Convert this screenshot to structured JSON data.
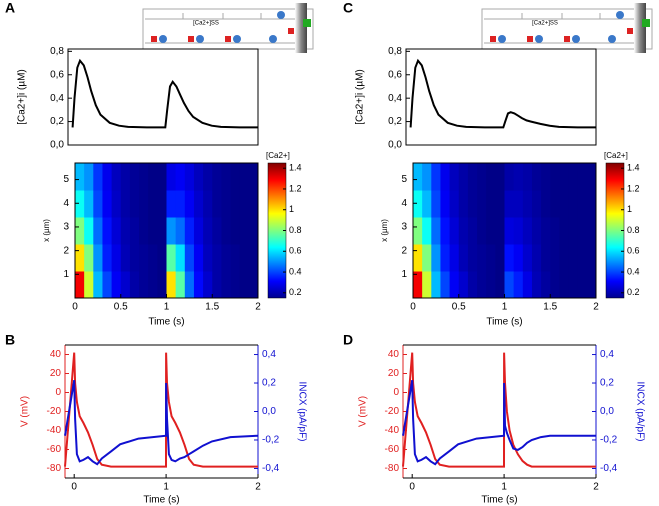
{
  "chart_data": [
    {
      "type": "line",
      "panel_label": "A",
      "annotation": "[Ca2+]SS",
      "ylabel": "[Ca2+]i (µM)",
      "x": [
        0,
        0.02,
        0.05,
        0.08,
        0.12,
        0.16,
        0.2,
        0.25,
        0.3,
        0.4,
        0.5,
        0.6,
        0.8,
        1.0,
        1.02,
        1.05,
        1.08,
        1.12,
        1.16,
        1.2,
        1.25,
        1.3,
        1.4,
        1.5,
        1.6,
        1.8,
        2.0
      ],
      "series": [
        {
          "color": "#000000",
          "values": [
            0.15,
            0.4,
            0.66,
            0.72,
            0.68,
            0.58,
            0.46,
            0.34,
            0.26,
            0.19,
            0.165,
            0.155,
            0.15,
            0.15,
            0.3,
            0.5,
            0.54,
            0.5,
            0.43,
            0.36,
            0.29,
            0.24,
            0.19,
            0.165,
            0.155,
            0.15,
            0.15
          ]
        }
      ],
      "xlim": [
        -0.05,
        2.0
      ],
      "ylim": [
        0,
        0.82
      ],
      "yticks": [
        {
          "value": 0,
          "label": "0,0"
        },
        {
          "value": 0.2,
          "label": "0,2"
        },
        {
          "value": 0.4,
          "label": "0,4"
        },
        {
          "value": 0.6,
          "label": "0,6"
        },
        {
          "value": 0.8,
          "label": "0,8"
        }
      ]
    },
    {
      "type": "heatmap",
      "xlabel": "Time (s)",
      "ylabel": "x (µm)",
      "colorbar_title": "[Ca2+]",
      "x": [
        0.05,
        0.15,
        0.25,
        0.35,
        0.45,
        0.55,
        0.65,
        0.75,
        0.85,
        0.95,
        1.05,
        1.15,
        1.25,
        1.35,
        1.45,
        1.55,
        1.65,
        1.75,
        1.85,
        1.95
      ],
      "y": [
        0.57,
        1.71,
        2.85,
        3.99,
        5.13
      ],
      "z": [
        [
          1.3,
          0.9,
          0.55,
          0.4,
          0.3,
          0.25,
          0.2,
          0.18,
          0.17,
          0.16,
          1.0,
          0.75,
          0.45,
          0.32,
          0.25,
          0.2,
          0.18,
          0.17,
          0.16,
          0.16
        ],
        [
          1.0,
          0.8,
          0.5,
          0.35,
          0.28,
          0.22,
          0.19,
          0.18,
          0.17,
          0.16,
          0.75,
          0.6,
          0.4,
          0.3,
          0.23,
          0.2,
          0.18,
          0.17,
          0.16,
          0.16
        ],
        [
          0.8,
          0.65,
          0.45,
          0.33,
          0.26,
          0.21,
          0.19,
          0.17,
          0.16,
          0.16,
          0.5,
          0.45,
          0.35,
          0.27,
          0.22,
          0.19,
          0.17,
          0.16,
          0.16,
          0.16
        ],
        [
          0.65,
          0.55,
          0.4,
          0.3,
          0.24,
          0.2,
          0.18,
          0.17,
          0.16,
          0.16,
          0.35,
          0.35,
          0.3,
          0.25,
          0.21,
          0.18,
          0.17,
          0.16,
          0.16,
          0.16
        ],
        [
          0.55,
          0.5,
          0.38,
          0.29,
          0.23,
          0.2,
          0.18,
          0.17,
          0.16,
          0.16,
          0.28,
          0.3,
          0.27,
          0.23,
          0.2,
          0.18,
          0.17,
          0.16,
          0.16,
          0.16
        ]
      ],
      "xlim": [
        0,
        2
      ],
      "ylim": [
        0,
        5.7
      ],
      "zlim": [
        0.15,
        1.45
      ],
      "xticks": [
        0,
        0.5,
        1,
        1.5,
        2
      ],
      "yticks": [
        1,
        2,
        3,
        4,
        5
      ],
      "zticks": [
        0.2,
        0.4,
        0.6,
        0.8,
        1,
        1.2,
        1.4
      ]
    },
    {
      "type": "dual_line",
      "panel_label": "B",
      "xlabel": "Time (s)",
      "ylabel": "V (mV)",
      "y2label": "INCX (pA/pF)",
      "x": [
        -0.1,
        0,
        0.01,
        0.03,
        0.06,
        0.1,
        0.15,
        0.2,
        0.25,
        0.3,
        0.4,
        0.5,
        0.7,
        0.999,
        1.0,
        1.01,
        1.03,
        1.06,
        1.1,
        1.15,
        1.2,
        1.25,
        1.3,
        1.4,
        1.5,
        1.7,
        2.0
      ],
      "series": [
        {
          "color": "#e02020",
          "values": [
            -78,
            42,
            10,
            -10,
            -25,
            -32,
            -42,
            -55,
            -70,
            -76,
            -78,
            -78,
            -78,
            -78,
            42,
            10,
            -10,
            -25,
            -32,
            -42,
            -55,
            -70,
            -76,
            -78,
            -78,
            -78,
            -78
          ]
        },
        {
          "color": "#1010d0",
          "axis": "y2",
          "values": [
            -0.17,
            0.22,
            -0.05,
            -0.3,
            -0.35,
            -0.34,
            -0.32,
            -0.35,
            -0.37,
            -0.33,
            -0.28,
            -0.23,
            -0.19,
            -0.17,
            0.2,
            -0.05,
            -0.3,
            -0.34,
            -0.35,
            -0.33,
            -0.32,
            -0.3,
            -0.28,
            -0.24,
            -0.21,
            -0.18,
            -0.17
          ]
        }
      ],
      "xlim": [
        -0.1,
        2.0
      ],
      "ylim": [
        -90,
        50
      ],
      "y2lim": [
        -0.467,
        0.467
      ],
      "xticks": [
        0,
        1,
        2
      ],
      "yticks": [
        -80,
        -60,
        -40,
        -20,
        0,
        20,
        40
      ],
      "y2ticks": [
        {
          "value": -0.4,
          "label": "-0,4"
        },
        {
          "value": -0.2,
          "label": "-0,2"
        },
        {
          "value": 0,
          "label": "0,0"
        },
        {
          "value": 0.2,
          "label": "0,2"
        },
        {
          "value": 0.4,
          "label": "0,4"
        }
      ]
    },
    {
      "type": "line",
      "panel_label": "C",
      "annotation": "[Ca2+]SS",
      "ylabel": "[Ca2+]i (µM)",
      "x": [
        0,
        0.02,
        0.05,
        0.08,
        0.12,
        0.16,
        0.2,
        0.25,
        0.3,
        0.4,
        0.5,
        0.6,
        0.8,
        1.0,
        1.02,
        1.05,
        1.08,
        1.12,
        1.16,
        1.2,
        1.25,
        1.3,
        1.4,
        1.5,
        1.6,
        1.8,
        2.0
      ],
      "series": [
        {
          "color": "#000000",
          "values": [
            0.15,
            0.4,
            0.66,
            0.72,
            0.68,
            0.58,
            0.46,
            0.34,
            0.26,
            0.19,
            0.165,
            0.155,
            0.15,
            0.15,
            0.2,
            0.27,
            0.28,
            0.27,
            0.25,
            0.23,
            0.21,
            0.2,
            0.18,
            0.165,
            0.155,
            0.15,
            0.15
          ]
        }
      ],
      "xlim": [
        -0.05,
        2.0
      ],
      "ylim": [
        0,
        0.82
      ],
      "yticks": [
        {
          "value": 0,
          "label": "0,0"
        },
        {
          "value": 0.2,
          "label": "0,2"
        },
        {
          "value": 0.4,
          "label": "0,4"
        },
        {
          "value": 0.6,
          "label": "0,6"
        },
        {
          "value": 0.8,
          "label": "0,8"
        }
      ]
    },
    {
      "type": "heatmap",
      "xlabel": "Time (s)",
      "ylabel": "x (µm)",
      "colorbar_title": "[Ca2+]",
      "x": [
        0.05,
        0.15,
        0.25,
        0.35,
        0.45,
        0.55,
        0.65,
        0.75,
        0.85,
        0.95,
        1.05,
        1.15,
        1.25,
        1.35,
        1.45,
        1.55,
        1.65,
        1.75,
        1.85,
        1.95
      ],
      "y": [
        0.57,
        1.71,
        2.85,
        3.99,
        5.13
      ],
      "z": [
        [
          1.3,
          0.9,
          0.55,
          0.4,
          0.3,
          0.25,
          0.2,
          0.18,
          0.17,
          0.16,
          0.4,
          0.35,
          0.28,
          0.22,
          0.19,
          0.17,
          0.16,
          0.16,
          0.16,
          0.16
        ],
        [
          1.0,
          0.8,
          0.5,
          0.35,
          0.28,
          0.22,
          0.19,
          0.18,
          0.17,
          0.16,
          0.33,
          0.3,
          0.25,
          0.21,
          0.18,
          0.17,
          0.16,
          0.16,
          0.16,
          0.16
        ],
        [
          0.8,
          0.65,
          0.45,
          0.33,
          0.26,
          0.21,
          0.19,
          0.17,
          0.16,
          0.16,
          0.27,
          0.26,
          0.23,
          0.2,
          0.18,
          0.17,
          0.16,
          0.16,
          0.16,
          0.16
        ],
        [
          0.65,
          0.55,
          0.4,
          0.3,
          0.24,
          0.2,
          0.18,
          0.17,
          0.16,
          0.16,
          0.23,
          0.23,
          0.21,
          0.19,
          0.17,
          0.16,
          0.16,
          0.16,
          0.16,
          0.16
        ],
        [
          0.55,
          0.5,
          0.38,
          0.29,
          0.23,
          0.2,
          0.18,
          0.17,
          0.16,
          0.16,
          0.2,
          0.21,
          0.2,
          0.18,
          0.17,
          0.16,
          0.16,
          0.16,
          0.16,
          0.16
        ]
      ],
      "xlim": [
        0,
        2
      ],
      "ylim": [
        0,
        5.7
      ],
      "zlim": [
        0.15,
        1.45
      ],
      "xticks": [
        0,
        0.5,
        1,
        1.5,
        2
      ],
      "yticks": [
        1,
        2,
        3,
        4,
        5
      ],
      "zticks": [
        0.2,
        0.4,
        0.6,
        0.8,
        1,
        1.2,
        1.4
      ]
    },
    {
      "type": "dual_line",
      "panel_label": "D",
      "xlabel": "Time (s)",
      "ylabel": "V (mV)",
      "y2label": "INCX (pA/pF)",
      "x": [
        -0.1,
        0,
        0.01,
        0.03,
        0.06,
        0.1,
        0.15,
        0.2,
        0.25,
        0.3,
        0.4,
        0.5,
        0.7,
        0.999,
        1.0,
        1.01,
        1.03,
        1.06,
        1.1,
        1.15,
        1.2,
        1.25,
        1.3,
        1.4,
        1.5,
        1.7,
        2.0
      ],
      "series": [
        {
          "color": "#e02020",
          "values": [
            -78,
            42,
            10,
            -10,
            -25,
            -32,
            -42,
            -55,
            -70,
            -76,
            -78,
            -78,
            -78,
            -78,
            42,
            10,
            -20,
            -40,
            -55,
            -65,
            -72,
            -76,
            -78,
            -78,
            -78,
            -78,
            -78
          ]
        },
        {
          "color": "#1010d0",
          "axis": "y2",
          "values": [
            -0.17,
            0.22,
            -0.05,
            -0.3,
            -0.35,
            -0.34,
            -0.32,
            -0.35,
            -0.37,
            -0.33,
            -0.28,
            -0.23,
            -0.19,
            -0.17,
            0.2,
            -0.1,
            -0.15,
            -0.2,
            -0.26,
            -0.27,
            -0.25,
            -0.22,
            -0.2,
            -0.18,
            -0.17,
            -0.17,
            -0.17
          ]
        }
      ],
      "xlim": [
        -0.1,
        2.0
      ],
      "ylim": [
        -90,
        50
      ],
      "y2lim": [
        -0.467,
        0.467
      ],
      "xticks": [
        0,
        1,
        2
      ],
      "yticks": [
        -80,
        -60,
        -40,
        -20,
        0,
        20,
        40
      ],
      "y2ticks": [
        {
          "value": -0.4,
          "label": "-0,4"
        },
        {
          "value": -0.2,
          "label": "-0,2"
        },
        {
          "value": 0,
          "label": "0,0"
        },
        {
          "value": 0.2,
          "label": "0,2"
        },
        {
          "value": 0.4,
          "label": "0,4"
        }
      ]
    }
  ]
}
